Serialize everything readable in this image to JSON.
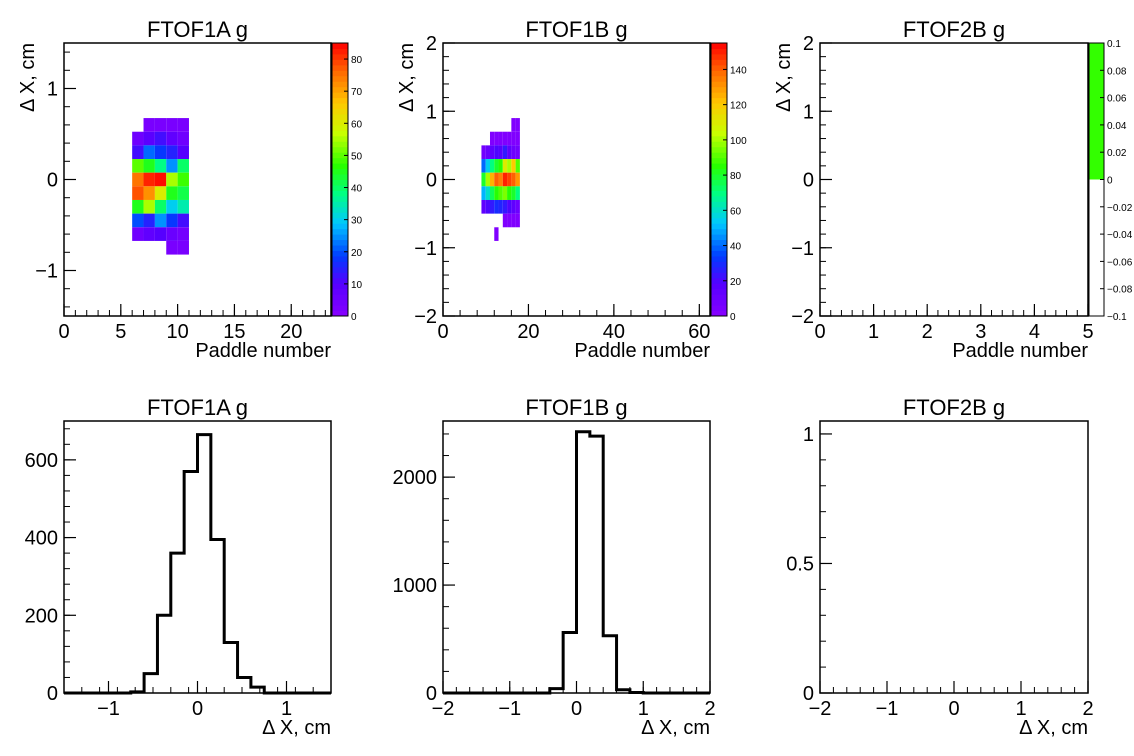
{
  "chart_data": [
    {
      "id": "ftof1a-2d",
      "type": "heatmap",
      "title": "FTOF1A g",
      "xlabel": "Paddle number",
      "ylabel": "Δ X, cm",
      "xlim": [
        0,
        23.5
      ],
      "ylim": [
        -1.5,
        1.5
      ],
      "xticks": [
        "0",
        "5",
        "10",
        "15",
        "20"
      ],
      "xtick_values": [
        0,
        5,
        10,
        15,
        20
      ],
      "yticks": [
        "−1",
        "0",
        "1"
      ],
      "ytick_values": [
        -1,
        0,
        1
      ],
      "palette_max": 85,
      "colorbar_ticks": [
        "0",
        "10",
        "20",
        "30",
        "40",
        "50",
        "60",
        "70",
        "80"
      ],
      "colorbar_values": [
        0,
        10,
        20,
        30,
        40,
        50,
        60,
        70,
        80
      ],
      "bin_width_x": 1,
      "bin_width_y": 0.15,
      "cells": [
        [
          7,
          0.6,
          3
        ],
        [
          8,
          0.6,
          3
        ],
        [
          9,
          0.6,
          3
        ],
        [
          10,
          0.6,
          3
        ],
        [
          6,
          0.45,
          5
        ],
        [
          7,
          0.45,
          9
        ],
        [
          8,
          0.45,
          12
        ],
        [
          9,
          0.45,
          8
        ],
        [
          10,
          0.45,
          5
        ],
        [
          6,
          0.3,
          12
        ],
        [
          7,
          0.3,
          22
        ],
        [
          8,
          0.3,
          18
        ],
        [
          9,
          0.3,
          15
        ],
        [
          10,
          0.3,
          10
        ],
        [
          6,
          0.15,
          50
        ],
        [
          7,
          0.15,
          45
        ],
        [
          8,
          0.15,
          38
        ],
        [
          9,
          0.15,
          25
        ],
        [
          10,
          0.15,
          40
        ],
        [
          6,
          0.0,
          75
        ],
        [
          7,
          0.0,
          82
        ],
        [
          8,
          0.0,
          84
        ],
        [
          9,
          0.0,
          55
        ],
        [
          10,
          0.0,
          48
        ],
        [
          6,
          -0.15,
          78
        ],
        [
          7,
          -0.15,
          72
        ],
        [
          8,
          -0.15,
          60
        ],
        [
          9,
          -0.15,
          45
        ],
        [
          10,
          -0.15,
          42
        ],
        [
          6,
          -0.3,
          45
        ],
        [
          7,
          -0.3,
          55
        ],
        [
          8,
          -0.3,
          40
        ],
        [
          9,
          -0.3,
          30
        ],
        [
          10,
          -0.3,
          35
        ],
        [
          6,
          -0.45,
          20
        ],
        [
          7,
          -0.45,
          15
        ],
        [
          8,
          -0.45,
          25
        ],
        [
          9,
          -0.45,
          18
        ],
        [
          10,
          -0.45,
          12
        ],
        [
          6,
          -0.6,
          5
        ],
        [
          7,
          -0.6,
          8
        ],
        [
          8,
          -0.6,
          10
        ],
        [
          9,
          -0.6,
          6
        ],
        [
          10,
          -0.6,
          4
        ],
        [
          9,
          -0.75,
          3
        ],
        [
          10,
          -0.75,
          3
        ]
      ]
    },
    {
      "id": "ftof1b-2d",
      "type": "heatmap",
      "title": "FTOF1B g",
      "xlabel": "Paddle number",
      "ylabel": "Δ X, cm",
      "xlim": [
        0,
        62.5
      ],
      "ylim": [
        -2,
        2
      ],
      "xticks": [
        "0",
        "20",
        "40",
        "60"
      ],
      "xtick_values": [
        0,
        20,
        40,
        60
      ],
      "yticks": [
        "−2",
        "−1",
        "0",
        "1",
        "2"
      ],
      "ytick_values": [
        -2,
        -1,
        0,
        1,
        2
      ],
      "palette_max": 155,
      "colorbar_ticks": [
        "0",
        "20",
        "40",
        "60",
        "80",
        "100",
        "120",
        "140"
      ],
      "colorbar_values": [
        0,
        20,
        40,
        60,
        80,
        100,
        120,
        140
      ],
      "bin_width_x": 1,
      "bin_width_y": 0.2,
      "cells": [
        [
          16,
          0.8,
          3
        ],
        [
          17,
          0.8,
          3
        ],
        [
          11,
          0.6,
          3
        ],
        [
          12,
          0.6,
          3
        ],
        [
          13,
          0.6,
          3
        ],
        [
          14,
          0.6,
          3
        ],
        [
          15,
          0.6,
          3
        ],
        [
          16,
          0.6,
          3
        ],
        [
          17,
          0.6,
          3
        ],
        [
          9,
          0.4,
          8
        ],
        [
          10,
          0.4,
          12
        ],
        [
          11,
          0.4,
          15
        ],
        [
          12,
          0.4,
          20
        ],
        [
          13,
          0.4,
          18
        ],
        [
          14,
          0.4,
          25
        ],
        [
          15,
          0.4,
          15
        ],
        [
          16,
          0.4,
          10
        ],
        [
          17,
          0.4,
          8
        ],
        [
          9,
          0.2,
          40
        ],
        [
          10,
          0.2,
          55
        ],
        [
          11,
          0.2,
          70
        ],
        [
          12,
          0.2,
          80
        ],
        [
          13,
          0.2,
          85
        ],
        [
          14,
          0.2,
          110
        ],
        [
          15,
          0.2,
          100
        ],
        [
          16,
          0.2,
          120
        ],
        [
          17,
          0.2,
          90
        ],
        [
          9,
          0.0,
          80
        ],
        [
          10,
          0.0,
          100
        ],
        [
          11,
          0.0,
          125
        ],
        [
          12,
          0.0,
          140
        ],
        [
          13,
          0.0,
          135
        ],
        [
          14,
          0.0,
          150
        ],
        [
          15,
          0.0,
          145
        ],
        [
          16,
          0.0,
          140
        ],
        [
          17,
          0.0,
          130
        ],
        [
          9,
          -0.2,
          50
        ],
        [
          10,
          -0.2,
          60
        ],
        [
          11,
          -0.2,
          75
        ],
        [
          12,
          -0.2,
          85
        ],
        [
          13,
          -0.2,
          90
        ],
        [
          14,
          -0.2,
          95
        ],
        [
          15,
          -0.2,
          85
        ],
        [
          16,
          -0.2,
          80
        ],
        [
          17,
          -0.2,
          70
        ],
        [
          9,
          -0.4,
          15
        ],
        [
          10,
          -0.4,
          20
        ],
        [
          11,
          -0.4,
          25
        ],
        [
          12,
          -0.4,
          30
        ],
        [
          13,
          -0.4,
          28
        ],
        [
          14,
          -0.4,
          25
        ],
        [
          15,
          -0.4,
          20
        ],
        [
          16,
          -0.4,
          15
        ],
        [
          17,
          -0.4,
          10
        ],
        [
          14,
          -0.6,
          3
        ],
        [
          15,
          -0.6,
          3
        ],
        [
          16,
          -0.6,
          3
        ],
        [
          17,
          -0.6,
          3
        ],
        [
          12,
          -0.8,
          3
        ]
      ]
    },
    {
      "id": "ftof2b-2d",
      "type": "heatmap",
      "title": "FTOF2B g",
      "xlabel": "Paddle number",
      "ylabel": "Δ X, cm",
      "xlim": [
        0,
        5
      ],
      "ylim": [
        -2,
        2
      ],
      "xticks": [
        "0",
        "1",
        "2",
        "3",
        "4",
        "5"
      ],
      "xtick_values": [
        0,
        1,
        2,
        3,
        4,
        5
      ],
      "yticks": [
        "−2",
        "−1",
        "0",
        "1",
        "2"
      ],
      "ytick_values": [
        -2,
        -1,
        0,
        1,
        2
      ],
      "colorbar_ticks": [
        "0.1",
        "0.08",
        "0.06",
        "0.04",
        "0.02",
        "0",
        "−0.02",
        "−0.04",
        "−0.06",
        "−0.08",
        "−0.1"
      ],
      "colorbar_values": [
        0.1,
        0.08,
        0.06,
        0.04,
        0.02,
        0,
        -0.02,
        -0.04,
        -0.06,
        -0.08,
        -0.1
      ],
      "colorbar_fill": "#33ff00",
      "cells": []
    },
    {
      "id": "ftof1a-1d",
      "type": "bar",
      "title": "FTOF1A g",
      "xlabel": "Δ X, cm",
      "ylabel": "",
      "xlim": [
        -1.5,
        1.5
      ],
      "ylim": [
        0,
        700
      ],
      "xticks": [
        "−1",
        "0",
        "1"
      ],
      "xtick_values": [
        -1,
        0,
        1
      ],
      "yticks": [
        "0",
        "200",
        "400",
        "600"
      ],
      "ytick_values": [
        0,
        200,
        400,
        600
      ],
      "bin_edges": [
        -1.5,
        -1.35,
        -1.2,
        -1.05,
        -0.9,
        -0.75,
        -0.6,
        -0.45,
        -0.3,
        -0.15,
        0,
        0.15,
        0.3,
        0.45,
        0.6,
        0.75,
        0.9,
        1.05,
        1.2,
        1.35,
        1.5
      ],
      "values": [
        0,
        0,
        0,
        0,
        0,
        3,
        50,
        200,
        360,
        570,
        665,
        395,
        130,
        40,
        15,
        0,
        0,
        0,
        0,
        0
      ]
    },
    {
      "id": "ftof1b-1d",
      "type": "bar",
      "title": "FTOF1B g",
      "xlabel": "Δ X, cm",
      "ylabel": "",
      "xlim": [
        -2,
        2
      ],
      "ylim": [
        0,
        2520
      ],
      "xticks": [
        "−2",
        "−1",
        "0",
        "1",
        "2"
      ],
      "xtick_values": [
        -2,
        -1,
        0,
        1,
        2
      ],
      "yticks": [
        "0",
        "1000",
        "2000"
      ],
      "ytick_values": [
        0,
        1000,
        2000
      ],
      "bin_edges": [
        -2,
        -1.8,
        -1.6,
        -1.4,
        -1.2,
        -1,
        -0.8,
        -0.6,
        -0.4,
        -0.2,
        0,
        0.2,
        0.4,
        0.6,
        0.8,
        1,
        1.2,
        1.4,
        1.6,
        1.8,
        2
      ],
      "values": [
        0,
        0,
        0,
        0,
        0,
        0,
        0,
        0,
        40,
        560,
        2420,
        2380,
        530,
        30,
        5,
        0,
        0,
        0,
        0,
        0
      ]
    },
    {
      "id": "ftof2b-1d",
      "type": "bar",
      "title": "FTOF2B g",
      "xlabel": "Δ X, cm",
      "ylabel": "",
      "xlim": [
        -2,
        2
      ],
      "ylim": [
        0,
        1.05
      ],
      "xticks": [
        "−2",
        "−1",
        "0",
        "1",
        "2"
      ],
      "xtick_values": [
        -2,
        -1,
        0,
        1,
        2
      ],
      "yticks": [
        "0",
        "0.5",
        "1"
      ],
      "ytick_values": [
        0,
        0.5,
        1
      ],
      "bin_edges": [],
      "values": []
    }
  ]
}
